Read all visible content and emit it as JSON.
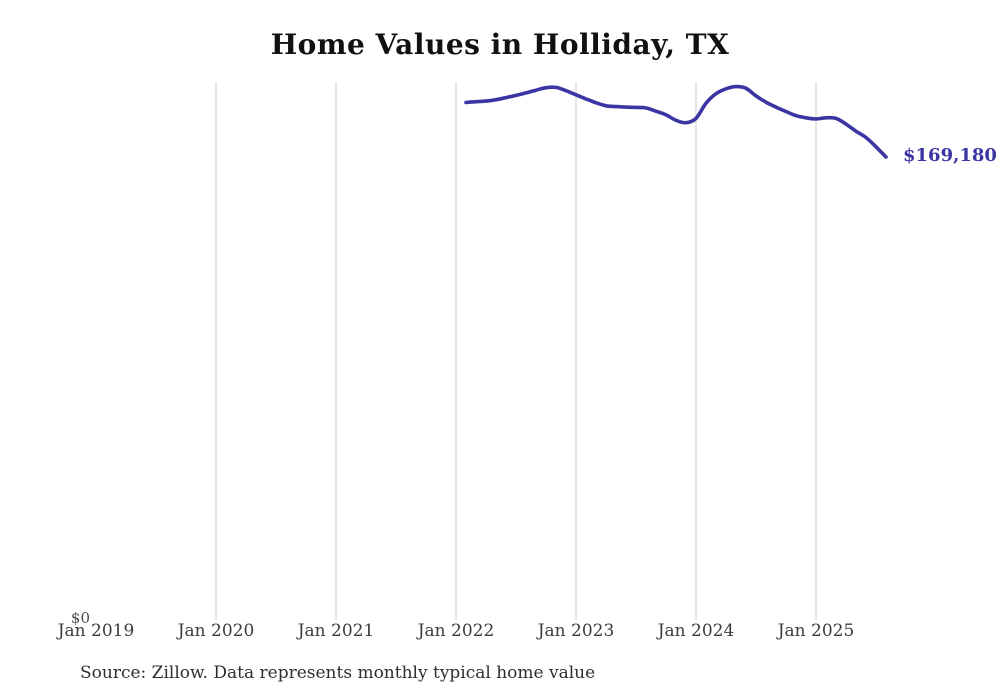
{
  "chart": {
    "title": "Home Values in Holliday, TX",
    "end_label": "$169,180",
    "source_note": "Source: Zillow. Data represents monthly typical home value",
    "line_color": "#3b35a3",
    "gridline_color": "#cccccc",
    "y_axis": {
      "zero_label": "$0"
    },
    "x_ticks": [
      {
        "label": "Jan 2019",
        "year": 2019,
        "gridline": false
      },
      {
        "label": "Jan 2020",
        "year": 2020,
        "gridline": true
      },
      {
        "label": "Jan 2021",
        "year": 2021,
        "gridline": true
      },
      {
        "label": "Jan 2022",
        "year": 2022,
        "gridline": true
      },
      {
        "label": "Jan 2023",
        "year": 2023,
        "gridline": true
      },
      {
        "label": "Jan 2024",
        "year": 2024,
        "gridline": true
      },
      {
        "label": "Jan 2025",
        "year": 2025,
        "gridline": true
      }
    ]
  },
  "chart_data": {
    "type": "line",
    "title": "Home Values in Holliday, TX",
    "xlabel": "",
    "ylabel": "",
    "y_axis_min": 0,
    "grid": "vertical-yearly",
    "legend_position": "none",
    "x_tick_labels": [
      "Jan 2019",
      "Jan 2020",
      "Jan 2021",
      "Jan 2022",
      "Jan 2023",
      "Jan 2024",
      "Jan 2025"
    ],
    "annotations": [
      "$169,180"
    ],
    "series": [
      {
        "name": "Monthly typical home value",
        "x": [
          "2022-02",
          "2022-03",
          "2022-04",
          "2022-05",
          "2022-06",
          "2022-07",
          "2022-08",
          "2022-09",
          "2022-10",
          "2022-11",
          "2022-12",
          "2023-01",
          "2023-02",
          "2023-03",
          "2023-04",
          "2023-05",
          "2023-06",
          "2023-07",
          "2023-08",
          "2023-09",
          "2023-10",
          "2023-11",
          "2023-12",
          "2024-01",
          "2024-02",
          "2024-03",
          "2024-04",
          "2024-05",
          "2024-06",
          "2024-07",
          "2024-08",
          "2024-09",
          "2024-10",
          "2024-11",
          "2024-12",
          "2025-01",
          "2025-02",
          "2025-03",
          "2025-04",
          "2025-05",
          "2025-06",
          "2025-07",
          "2025-08"
        ],
        "values": [
          189100,
          189400,
          189600,
          190100,
          190900,
          191700,
          192600,
          193600,
          194500,
          194600,
          193400,
          191900,
          190400,
          189000,
          187900,
          187600,
          187400,
          187300,
          187100,
          185900,
          184600,
          182600,
          181700,
          183300,
          188800,
          192300,
          194100,
          194900,
          194300,
          191500,
          189200,
          187400,
          185800,
          184300,
          183500,
          183100,
          183500,
          183300,
          181200,
          178600,
          176300,
          172900,
          169180
        ]
      }
    ]
  }
}
